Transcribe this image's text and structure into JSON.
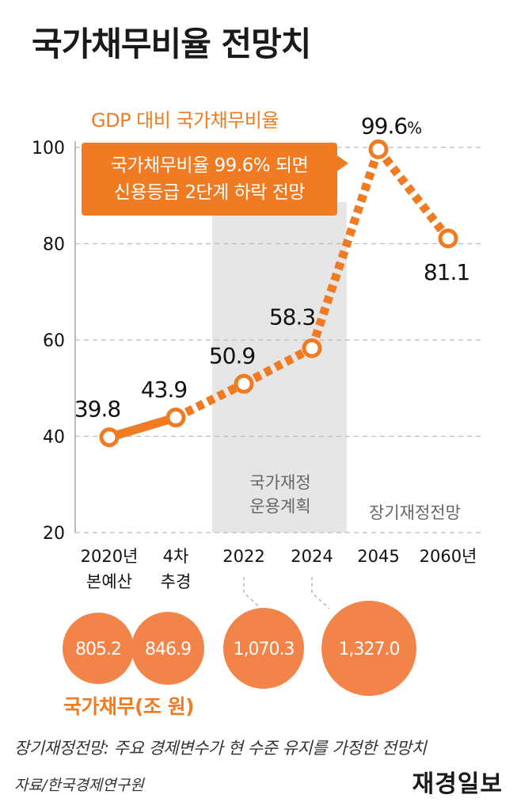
{
  "page_title": "국가채무비율 전망치",
  "series_label": "GDP 대비 국가채무비율",
  "callout": {
    "line1": "국가채무비율 99.6% 되면",
    "line2": "신용등급 2단계 하락 전망"
  },
  "period_labels": {
    "plan_line1": "국가재정",
    "plan_line2": "운용계획",
    "longterm": "장기재정전망"
  },
  "debt_label": "국가채무(조 원)",
  "footnote": "장기재정전망: 주요 경제변수가 현 수준 유지를 가정한 전망치",
  "source": "자료/한국경제연구원",
  "brand": "재경일보",
  "colors": {
    "accent": "#f07b22",
    "bubble": "#f2844a",
    "shade": "#e6e6e6",
    "grid": "#bbbbbb"
  },
  "chart_data": {
    "type": "line",
    "title": "국가채무비율 전망치",
    "series": [
      {
        "name": "GDP 대비 국가채무비율",
        "values": [
          39.8,
          43.9,
          50.9,
          58.3,
          99.6,
          81.1
        ],
        "labels": [
          "39.8",
          "43.9",
          "50.9",
          "58.3",
          "99.6%",
          "81.1"
        ]
      }
    ],
    "categories": [
      {
        "line1": "2020년",
        "line2": "본예산"
      },
      {
        "line1": "4차",
        "line2": "추경"
      },
      {
        "line1": "2022",
        "line2": ""
      },
      {
        "line1": "2024",
        "line2": ""
      },
      {
        "line1": "2045",
        "line2": ""
      },
      {
        "line1": "2060년",
        "line2": ""
      }
    ],
    "yticks": [
      "20",
      "40",
      "60",
      "80",
      "100"
    ],
    "ylim": [
      20,
      100
    ],
    "grid": true,
    "debt_values": [
      "805.2",
      "846.9",
      "1,070.3",
      "1,327.0"
    ]
  }
}
